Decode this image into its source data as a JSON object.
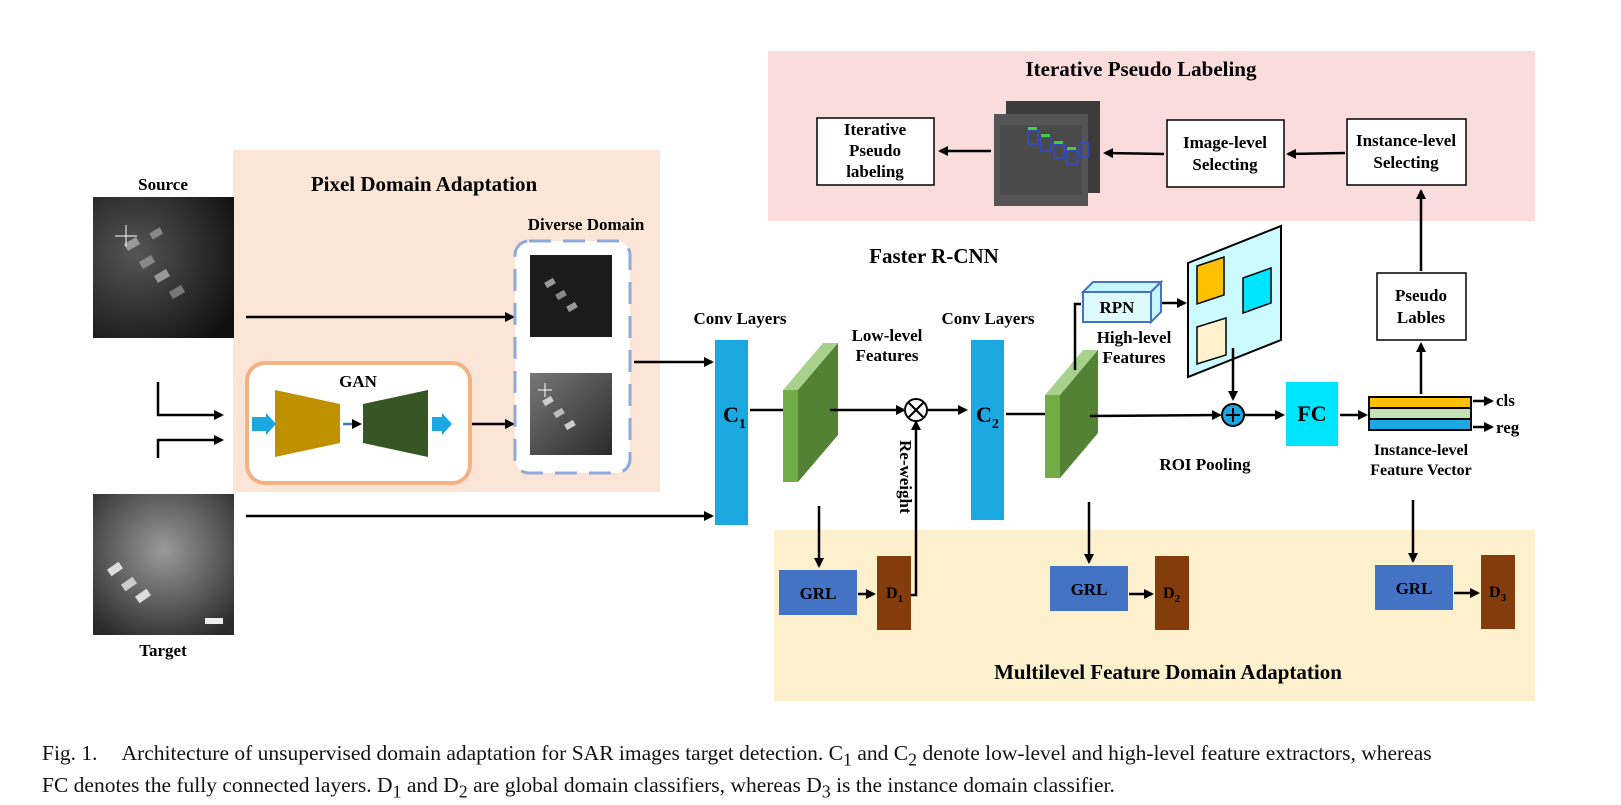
{
  "regions": {
    "pixel_domain_adaptation": "Pixel Domain Adaptation",
    "iterative_pseudo_labeling": "Iterative Pseudo Labeling",
    "faster_rcnn": "Faster R-CNN",
    "multilevel_feature_domain_adaptation": "Multilevel Feature Domain Adaptation"
  },
  "images": {
    "source": "Source",
    "target": "Target",
    "diverse_domain": "Diverse Domain"
  },
  "gan": "GAN",
  "conv1": {
    "title": "Conv Layers",
    "main": "C",
    "sub": "1"
  },
  "conv2": {
    "title": "Conv Layers",
    "main": "C",
    "sub": "2"
  },
  "low_level": {
    "line1": "Low-level",
    "line2": "Features"
  },
  "high_level": {
    "line1": "High-level",
    "line2": "Features"
  },
  "reweight": "Re-weight",
  "rpn": "RPN",
  "roi_pooling": "ROI Pooling",
  "fc": "FC",
  "outputs": {
    "cls": "cls",
    "reg": "reg"
  },
  "instance_vector": {
    "line1": "Instance-level",
    "line2": "Feature Vector"
  },
  "pseudo_labels": {
    "line1": "Pseudo",
    "line2": "Lables"
  },
  "instance_selecting": {
    "line1": "Instance-level",
    "line2": "Selecting"
  },
  "image_selecting": {
    "line1": "Image-level",
    "line2": "Selecting"
  },
  "iterative_box": {
    "line1": "Iterative",
    "line2": "Pseudo",
    "line3": "labeling"
  },
  "grl": "GRL",
  "discriminators": [
    {
      "main": "D",
      "sub": "1"
    },
    {
      "main": "D",
      "sub": "2"
    },
    {
      "main": "D",
      "sub": "3"
    }
  ],
  "caption": {
    "label": "Fig. 1.",
    "line1_pre": "Architecture of unsupervised domain adaptation for SAR images target detection. C",
    "s1": "1",
    "m1": " and C",
    "s2": "2",
    "m2": " denote low-level and high-level feature extractors, whereas",
    "line2_pre": "FC denotes the fully connected layers. D",
    "s3": "1",
    "m3": " and D",
    "s4": "2",
    "m4": " are global domain classifiers, whereas D",
    "s5": "3",
    "m5": " is the instance domain classifier."
  },
  "colors": {
    "pixel_bg": "#fbe5d6",
    "pseudo_bg": "#fadcdc",
    "feature_bg": "#fdf0cc",
    "conv_blue": "#1ba8e0",
    "feature_green": "#71ad47",
    "grl_blue": "#4472c4",
    "disc_brown": "#843c0c",
    "fc_cyan": "#00e5ff",
    "gan_orange": "#f4b183"
  }
}
